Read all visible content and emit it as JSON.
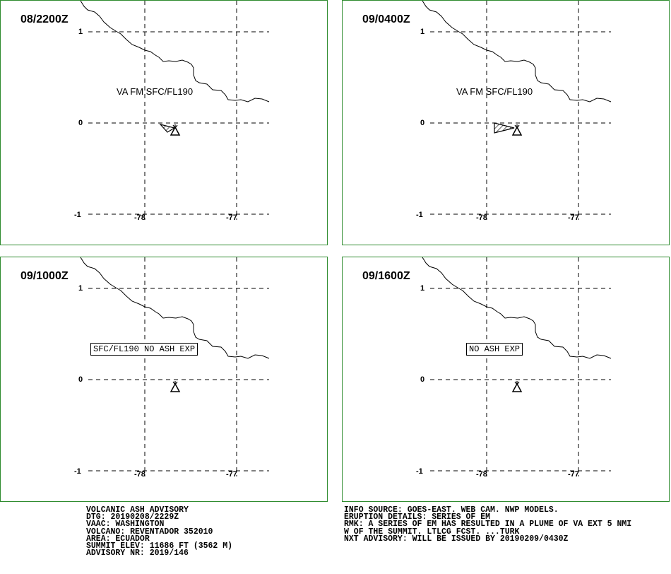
{
  "panels": [
    {
      "time": "08/2200Z",
      "label": "VA FM SFC/FL190",
      "label_boxed": false,
      "ash": "small"
    },
    {
      "time": "09/0400Z",
      "label": "VA FM SFC/FL190",
      "label_boxed": false,
      "ash": "large"
    },
    {
      "time": "09/1000Z",
      "label": "SFC/FL190 NO ASH EXP",
      "label_boxed": true,
      "ash": "none"
    },
    {
      "time": "09/1600Z",
      "label": "NO ASH EXP",
      "label_boxed": true,
      "ash": "none"
    }
  ],
  "axes": {
    "lat_ticks": [
      "1",
      "0",
      "-1"
    ],
    "lon_ticks": [
      "-78",
      "-77"
    ]
  },
  "volcano_marker": "volcano-triangle-icon",
  "advisory_left": [
    "VOLCANIC ASH ADVISORY",
    "DTG: 20190208/2229Z",
    "VAAC: WASHINGTON",
    "VOLCANO: REVENTADOR 352010",
    "AREA: ECUADOR",
    "SUMMIT ELEV: 11686 FT (3562 M)",
    "ADVISORY NR: 2019/146"
  ],
  "advisory_right": [
    "INFO SOURCE: GOES-EAST. WEB CAM. NWP MODELS.",
    "ERUPTION DETAILS: SERIES OF EM",
    "RMK: A SERIES OF EM HAS RESULTED IN A PLUME OF VA EXT 5 NMI",
    "W OF THE SUMMIT. LTLCG FCST. ...TURK",
    "NXT ADVISORY: WILL BE ISSUED BY 20190209/0430Z"
  ],
  "colors": {
    "border": "#2e8b2e",
    "lines": "#000000",
    "background": "#ffffff"
  }
}
